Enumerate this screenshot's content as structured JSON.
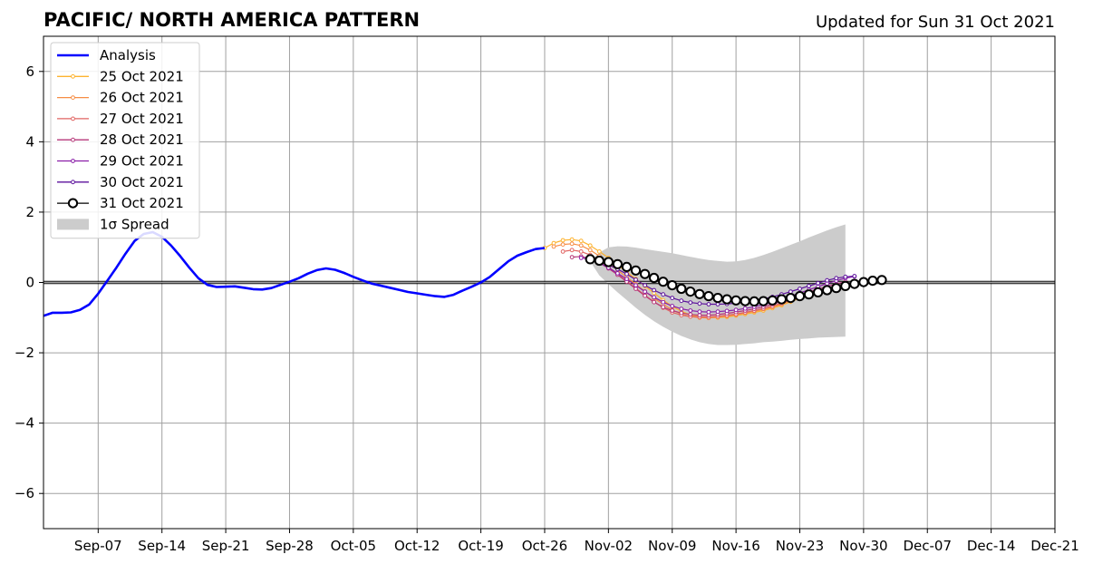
{
  "chart_data": {
    "type": "line",
    "title": "PACIFIC/ NORTH AMERICA PATTERN",
    "updated_label": "Updated for Sun 31 Oct 2021",
    "xlabel": "",
    "ylabel": "",
    "x_range": [
      "2021-09-01",
      "2021-12-21"
    ],
    "ylim": [
      -7,
      7
    ],
    "grid": true,
    "legend_placement": "top-left",
    "x_ticks": [
      {
        "date": "2021-09-07",
        "label": "Sep-07"
      },
      {
        "date": "2021-09-14",
        "label": "Sep-14"
      },
      {
        "date": "2021-09-21",
        "label": "Sep-21"
      },
      {
        "date": "2021-09-28",
        "label": "Sep-28"
      },
      {
        "date": "2021-10-05",
        "label": "Oct-05"
      },
      {
        "date": "2021-10-12",
        "label": "Oct-12"
      },
      {
        "date": "2021-10-19",
        "label": "Oct-19"
      },
      {
        "date": "2021-10-26",
        "label": "Oct-26"
      },
      {
        "date": "2021-11-02",
        "label": "Nov-02"
      },
      {
        "date": "2021-11-09",
        "label": "Nov-09"
      },
      {
        "date": "2021-11-16",
        "label": "Nov-16"
      },
      {
        "date": "2021-11-23",
        "label": "Nov-23"
      },
      {
        "date": "2021-11-30",
        "label": "Nov-30"
      },
      {
        "date": "2021-12-07",
        "label": "Dec-07"
      },
      {
        "date": "2021-12-14",
        "label": "Dec-14"
      },
      {
        "date": "2021-12-21",
        "label": "Dec-21"
      }
    ],
    "y_ticks": [
      {
        "value": 6,
        "label": "6"
      },
      {
        "value": 4,
        "label": "4"
      },
      {
        "value": 2,
        "label": "2"
      },
      {
        "value": 0,
        "label": "0"
      },
      {
        "value": -2,
        "label": "−2"
      },
      {
        "value": -4,
        "label": "−4"
      },
      {
        "value": -6,
        "label": "−6"
      }
    ],
    "analysis": {
      "name": "Analysis",
      "color": "#0000ff",
      "points": [
        [
          "2021-09-01",
          -0.95
        ],
        [
          "2021-09-02",
          -0.86
        ],
        [
          "2021-09-03",
          -0.86
        ],
        [
          "2021-09-04",
          -0.85
        ],
        [
          "2021-09-05",
          -0.78
        ],
        [
          "2021-09-06",
          -0.63
        ],
        [
          "2021-09-07",
          -0.32
        ],
        [
          "2021-09-08",
          0.05
        ],
        [
          "2021-09-09",
          0.42
        ],
        [
          "2021-09-10",
          0.82
        ],
        [
          "2021-09-11",
          1.18
        ],
        [
          "2021-09-12",
          1.38
        ],
        [
          "2021-09-13",
          1.43
        ],
        [
          "2021-09-14",
          1.3
        ],
        [
          "2021-09-15",
          1.05
        ],
        [
          "2021-09-16",
          0.75
        ],
        [
          "2021-09-17",
          0.42
        ],
        [
          "2021-09-18",
          0.12
        ],
        [
          "2021-09-19",
          -0.07
        ],
        [
          "2021-09-20",
          -0.13
        ],
        [
          "2021-09-21",
          -0.12
        ],
        [
          "2021-09-22",
          -0.11
        ],
        [
          "2021-09-23",
          -0.15
        ],
        [
          "2021-09-24",
          -0.19
        ],
        [
          "2021-09-25",
          -0.2
        ],
        [
          "2021-09-26",
          -0.16
        ],
        [
          "2021-09-27",
          -0.07
        ],
        [
          "2021-09-28",
          0.02
        ],
        [
          "2021-09-29",
          0.12
        ],
        [
          "2021-09-30",
          0.25
        ],
        [
          "2021-10-01",
          0.35
        ],
        [
          "2021-10-02",
          0.4
        ],
        [
          "2021-10-03",
          0.36
        ],
        [
          "2021-10-04",
          0.27
        ],
        [
          "2021-10-05",
          0.16
        ],
        [
          "2021-10-06",
          0.06
        ],
        [
          "2021-10-07",
          -0.03
        ],
        [
          "2021-10-08",
          -0.09
        ],
        [
          "2021-10-09",
          -0.15
        ],
        [
          "2021-10-10",
          -0.21
        ],
        [
          "2021-10-11",
          -0.27
        ],
        [
          "2021-10-12",
          -0.31
        ],
        [
          "2021-10-13",
          -0.35
        ],
        [
          "2021-10-14",
          -0.39
        ],
        [
          "2021-10-15",
          -0.41
        ],
        [
          "2021-10-16",
          -0.35
        ],
        [
          "2021-10-17",
          -0.23
        ],
        [
          "2021-10-18",
          -0.12
        ],
        [
          "2021-10-19",
          0.0
        ],
        [
          "2021-10-20",
          0.16
        ],
        [
          "2021-10-21",
          0.38
        ],
        [
          "2021-10-22",
          0.6
        ],
        [
          "2021-10-23",
          0.76
        ],
        [
          "2021-10-24",
          0.86
        ],
        [
          "2021-10-25",
          0.95
        ],
        [
          "2021-10-26",
          0.98
        ]
      ]
    },
    "spread": {
      "name": "1σ Spread",
      "color": "#cccccc",
      "start": "2021-10-31",
      "upper": [
        0.6,
        0.85,
        1.0,
        1.03,
        1.02,
        0.99,
        0.95,
        0.91,
        0.87,
        0.83,
        0.78,
        0.73,
        0.68,
        0.64,
        0.61,
        0.59,
        0.6,
        0.64,
        0.7,
        0.78,
        0.87,
        0.97,
        1.07,
        1.17,
        1.28,
        1.38,
        1.48,
        1.57,
        1.65
      ],
      "lower": [
        0.6,
        0.2,
        -0.05,
        -0.28,
        -0.5,
        -0.72,
        -0.92,
        -1.1,
        -1.26,
        -1.4,
        -1.52,
        -1.62,
        -1.7,
        -1.75,
        -1.78,
        -1.78,
        -1.77,
        -1.75,
        -1.73,
        -1.7,
        -1.68,
        -1.66,
        -1.63,
        -1.61,
        -1.59,
        -1.57,
        -1.56,
        -1.55,
        -1.54
      ]
    },
    "series": [
      {
        "name": "25 Oct 2021",
        "color": "#fdb32f",
        "start": "2021-10-26",
        "values": [
          0.98,
          1.12,
          1.2,
          1.22,
          1.18,
          1.05,
          0.88,
          0.7,
          0.5,
          0.3,
          0.1,
          -0.1,
          -0.3,
          -0.5,
          -0.68,
          -0.82,
          -0.92,
          -0.98,
          -1.0,
          -1.0,
          -0.98,
          -0.94,
          -0.9,
          -0.85,
          -0.8,
          -0.73,
          -0.65,
          -0.55,
          -0.45,
          -0.36,
          -0.28,
          -0.22,
          -0.16,
          -0.1
        ]
      },
      {
        "name": "26 Oct 2021",
        "color": "#f68d45",
        "start": "2021-10-27",
        "values": [
          1.02,
          1.08,
          1.1,
          1.05,
          0.92,
          0.75,
          0.55,
          0.35,
          0.15,
          -0.05,
          -0.25,
          -0.45,
          -0.62,
          -0.78,
          -0.9,
          -0.97,
          -1.0,
          -1.01,
          -0.99,
          -0.96,
          -0.92,
          -0.87,
          -0.82,
          -0.76,
          -0.7,
          -0.62,
          -0.53,
          -0.44,
          -0.36,
          -0.29,
          -0.22,
          -0.16,
          -0.1
        ]
      },
      {
        "name": "27 Oct 2021",
        "color": "#e16462",
        "start": "2021-10-28",
        "values": [
          0.88,
          0.92,
          0.88,
          0.78,
          0.62,
          0.44,
          0.24,
          0.04,
          -0.16,
          -0.36,
          -0.55,
          -0.72,
          -0.85,
          -0.93,
          -0.97,
          -0.98,
          -0.98,
          -0.96,
          -0.93,
          -0.9,
          -0.85,
          -0.8,
          -0.74,
          -0.67,
          -0.59,
          -0.5,
          -0.41,
          -0.32,
          -0.24,
          -0.17,
          -0.1,
          -0.04
        ]
      },
      {
        "name": "28 Oct 2021",
        "color": "#b73779",
        "start": "2021-10-29",
        "values": [
          0.72,
          0.74,
          0.68,
          0.56,
          0.4,
          0.22,
          0.02,
          -0.18,
          -0.38,
          -0.56,
          -0.7,
          -0.8,
          -0.87,
          -0.91,
          -0.93,
          -0.93,
          -0.91,
          -0.88,
          -0.84,
          -0.8,
          -0.75,
          -0.69,
          -0.62,
          -0.54,
          -0.45,
          -0.36,
          -0.27,
          -0.19,
          -0.11,
          -0.04,
          0.02
        ]
      },
      {
        "name": "29 Oct 2021",
        "color": "#8a1fa8",
        "start": "2021-10-30",
        "values": [
          0.7,
          0.66,
          0.56,
          0.42,
          0.26,
          0.1,
          -0.08,
          -0.26,
          -0.42,
          -0.56,
          -0.67,
          -0.75,
          -0.8,
          -0.83,
          -0.84,
          -0.83,
          -0.81,
          -0.78,
          -0.74,
          -0.69,
          -0.63,
          -0.56,
          -0.48,
          -0.39,
          -0.3,
          -0.21,
          -0.12,
          -0.03,
          0.05,
          0.12,
          0.17
        ]
      },
      {
        "name": "30 Oct 2021",
        "color": "#5c129c",
        "start": "2021-10-31",
        "values": [
          0.66,
          0.6,
          0.5,
          0.38,
          0.24,
          0.08,
          -0.08,
          -0.22,
          -0.34,
          -0.44,
          -0.52,
          -0.57,
          -0.6,
          -0.62,
          -0.62,
          -0.61,
          -0.59,
          -0.56,
          -0.52,
          -0.47,
          -0.41,
          -0.34,
          -0.26,
          -0.18,
          -0.1,
          -0.02,
          0.06,
          0.12,
          0.16,
          0.18
        ]
      },
      {
        "name": "31 Oct 2021",
        "color": "#000000",
        "start": "2021-10-31",
        "values": [
          0.66,
          0.62,
          0.58,
          0.52,
          0.44,
          0.34,
          0.24,
          0.13,
          0.02,
          -0.08,
          -0.18,
          -0.26,
          -0.33,
          -0.39,
          -0.44,
          -0.48,
          -0.51,
          -0.53,
          -0.54,
          -0.53,
          -0.51,
          -0.48,
          -0.44,
          -0.39,
          -0.34,
          -0.28,
          -0.22,
          -0.16,
          -0.1,
          -0.04,
          0.01,
          0.05,
          0.07
        ]
      }
    ]
  }
}
